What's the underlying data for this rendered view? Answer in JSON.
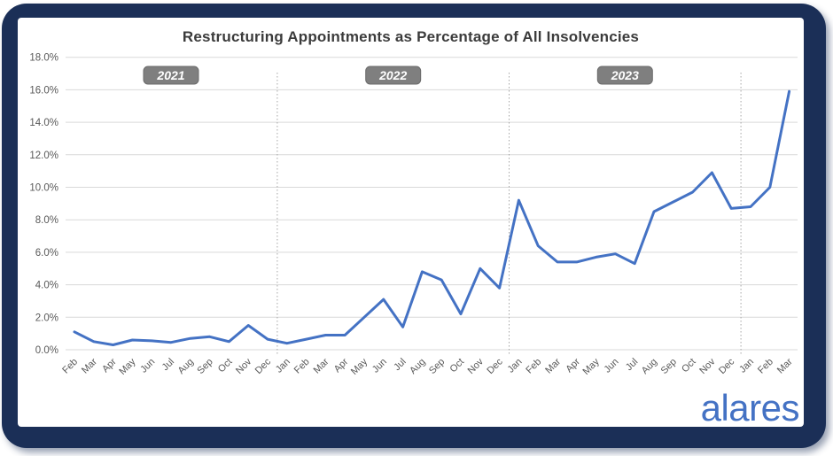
{
  "logo": {
    "text": "alares"
  },
  "colors": {
    "line": "#4472C4",
    "grid": "#d9d9d9",
    "axis_text": "#595959",
    "separator": "#a6a6a6",
    "badge_bg": "#7f7f7f",
    "badge_border": "#6b6b6b",
    "badge_text": "#ffffff",
    "frame": "#1b2f57",
    "title_text": "#3b3b3b",
    "logo_text": "#4472c4"
  },
  "chart_data": {
    "type": "line",
    "title": "Restructuring Appointments as Percentage of All Insolvencies",
    "x": [
      "Feb",
      "Mar",
      "Apr",
      "May",
      "Jun",
      "Jul",
      "Aug",
      "Sep",
      "Oct",
      "Nov",
      "Dec",
      "Jan",
      "Feb",
      "Mar",
      "Apr",
      "May",
      "Jun",
      "Jul",
      "Aug",
      "Sep",
      "Oct",
      "Nov",
      "Dec",
      "Jan",
      "Feb",
      "Mar",
      "Apr",
      "May",
      "Jun",
      "Jul",
      "Aug",
      "Sep",
      "Oct",
      "Nov",
      "Dec",
      "Jan",
      "Feb",
      "Mar"
    ],
    "values": [
      1.1,
      0.5,
      0.3,
      0.6,
      0.55,
      0.45,
      0.7,
      0.8,
      0.5,
      1.5,
      0.65,
      0.4,
      0.65,
      0.9,
      0.9,
      2.0,
      3.1,
      1.4,
      4.8,
      4.3,
      2.2,
      5.0,
      3.8,
      9.2,
      6.4,
      5.4,
      5.4,
      5.7,
      5.9,
      5.3,
      8.5,
      9.1,
      9.7,
      10.9,
      8.7,
      8.8,
      10.0,
      15.9
    ],
    "year_groups": [
      {
        "label": "2021",
        "start": 0,
        "end": 10
      },
      {
        "label": "2022",
        "start": 11,
        "end": 22
      },
      {
        "label": "2023",
        "start": 23,
        "end": 34
      },
      {
        "label": "",
        "start": 35,
        "end": 37
      }
    ],
    "y_ticks": [
      "18.0%",
      "16.0%",
      "14.0%",
      "12.0%",
      "10.0%",
      "8.0%",
      "6.0%",
      "4.0%",
      "2.0%",
      "0.0%"
    ],
    "ylim": [
      0,
      18
    ],
    "ytick_step": 2,
    "xlabel": "",
    "ylabel": "",
    "grid": "horizontal",
    "legend": "none"
  }
}
